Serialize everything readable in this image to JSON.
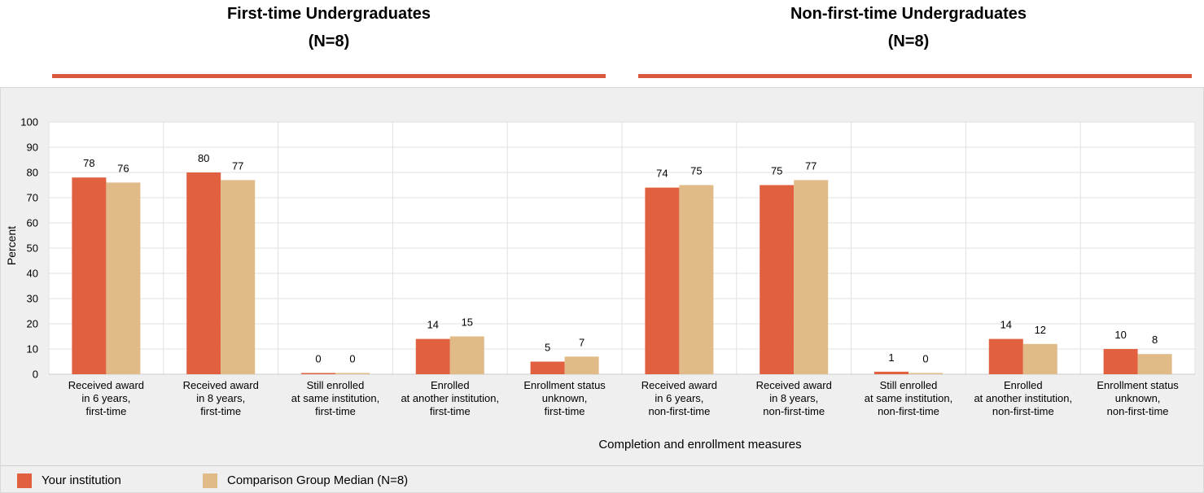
{
  "groups": [
    {
      "title": "First-time Undergraduates",
      "n": "(N=8)"
    },
    {
      "title": "Non-first-time Undergraduates",
      "n": "(N=8)"
    }
  ],
  "legend": {
    "series1": "Your institution",
    "series2": "Comparison Group Median (N=8)"
  },
  "colors": {
    "series1": "#e06040",
    "series2": "#e0bb88",
    "accent": "#d9573b"
  },
  "chart_data": {
    "type": "bar",
    "ylabel": "Percent",
    "xlabel": "Completion and enrollment measures",
    "ylim": [
      0,
      100
    ],
    "yticks": [
      0,
      10,
      20,
      30,
      40,
      50,
      60,
      70,
      80,
      90,
      100
    ],
    "categories": [
      [
        "Received award",
        "in 6 years,",
        "first-time"
      ],
      [
        "Received award",
        "in 8 years,",
        "first-time"
      ],
      [
        "Still enrolled",
        "at same institution,",
        "first-time"
      ],
      [
        "Enrolled",
        "at another institution,",
        "first-time"
      ],
      [
        "Enrollment status",
        "unknown,",
        "first-time"
      ],
      [
        "Received award",
        "in 6 years,",
        "non-first-time"
      ],
      [
        "Received award",
        "in 8 years,",
        "non-first-time"
      ],
      [
        "Still enrolled",
        "at same institution,",
        "non-first-time"
      ],
      [
        "Enrolled",
        "at another institution,",
        "non-first-time"
      ],
      [
        "Enrollment status",
        "unknown,",
        "non-first-time"
      ]
    ],
    "series": [
      {
        "name": "Your institution",
        "values": [
          78,
          80,
          0,
          14,
          5,
          74,
          75,
          1,
          14,
          10
        ]
      },
      {
        "name": "Comparison Group Median (N=8)",
        "values": [
          76,
          77,
          0,
          15,
          7,
          75,
          77,
          0,
          12,
          8
        ]
      }
    ]
  }
}
